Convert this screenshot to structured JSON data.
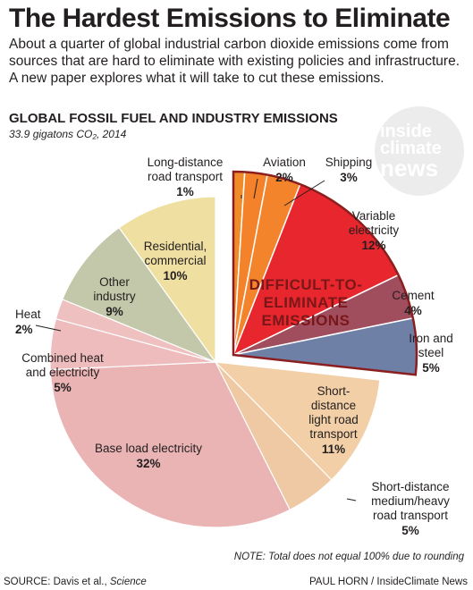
{
  "title": "The Hardest Emissions to Eliminate",
  "intro": "About a quarter of global industrial carbon dioxide emissions come from sources that are hard to eliminate with existing policies and infrastructure. A new paper explores what it will take to cut these emissions.",
  "chart_heading": "GLOBAL FOSSIL FUEL AND INDUSTRY EMISSIONS",
  "chart_subheading": "33.9 gigatons CO₂, 2014",
  "logo": {
    "line1": "inside",
    "line2": "climate",
    "line3": "news"
  },
  "difficult_label": [
    "DIFFICULT-TO-",
    "ELIMINATE",
    "EMISSIONS"
  ],
  "note": "NOTE: Total does not equal 100% due to rounding",
  "source_prefix": "SOURCE: Davis et al., ",
  "source_journal": "Science",
  "credit": "PAUL HORN / InsideClimate News",
  "chart_data": {
    "type": "pie",
    "title": "GLOBAL FOSSIL FUEL AND INDUSTRY EMISSIONS",
    "subtitle": "33.9 gigatons CO₂, 2014",
    "unit": "%",
    "slices": [
      {
        "name": "Long-distance road transport",
        "label_lines": [
          "Long-distance",
          "road transport"
        ],
        "value": 1,
        "value_label": "1%",
        "color": "#f08b2a",
        "group": "difficult"
      },
      {
        "name": "Aviation",
        "label_lines": [
          "Aviation"
        ],
        "value": 2,
        "value_label": "2%",
        "color": "#f3822a",
        "group": "difficult"
      },
      {
        "name": "Shipping",
        "label_lines": [
          "Shipping"
        ],
        "value": 3,
        "value_label": "3%",
        "color": "#f4842b",
        "group": "difficult"
      },
      {
        "name": "Variable electricity",
        "label_lines": [
          "Variable",
          "electricity"
        ],
        "value": 12,
        "value_label": "12%",
        "color": "#e8262d",
        "group": "difficult"
      },
      {
        "name": "Cement",
        "label_lines": [
          "Cement"
        ],
        "value": 4,
        "value_label": "4%",
        "color": "#a04d5e",
        "group": "difficult"
      },
      {
        "name": "Iron and steel",
        "label_lines": [
          "Iron and",
          "steel"
        ],
        "value": 5,
        "value_label": "5%",
        "color": "#6f80a6",
        "group": "difficult"
      },
      {
        "name": "Short-distance light road transport",
        "label_lines": [
          "Short-",
          "distance",
          "light road",
          "transport"
        ],
        "value": 11,
        "value_label": "11%",
        "color": "#f2cfa6",
        "group": "other"
      },
      {
        "name": "Short-distance medium/heavy road transport",
        "label_lines": [
          "Short-distance",
          "medium/heavy",
          "road transport"
        ],
        "value": 5,
        "value_label": "5%",
        "color": "#efc9a3",
        "group": "other"
      },
      {
        "name": "Base load electricity",
        "label_lines": [
          "Base load electricity"
        ],
        "value": 32,
        "value_label": "32%",
        "color": "#eab3b4",
        "group": "other"
      },
      {
        "name": "Combined heat and electricity",
        "label_lines": [
          "Combined heat",
          "and electricity"
        ],
        "value": 5,
        "value_label": "5%",
        "color": "#eebcbd",
        "group": "other"
      },
      {
        "name": "Heat",
        "label_lines": [
          "Heat"
        ],
        "value": 2,
        "value_label": "2%",
        "color": "#efc0c0",
        "group": "other"
      },
      {
        "name": "Other industry",
        "label_lines": [
          "Other",
          "industry"
        ],
        "value": 9,
        "value_label": "9%",
        "color": "#c2c8a9",
        "group": "other"
      },
      {
        "name": "Residential, commercial",
        "label_lines": [
          "Residential,",
          "commercial"
        ],
        "value": 10,
        "value_label": "10%",
        "color": "#efe0a2",
        "group": "other"
      }
    ]
  }
}
